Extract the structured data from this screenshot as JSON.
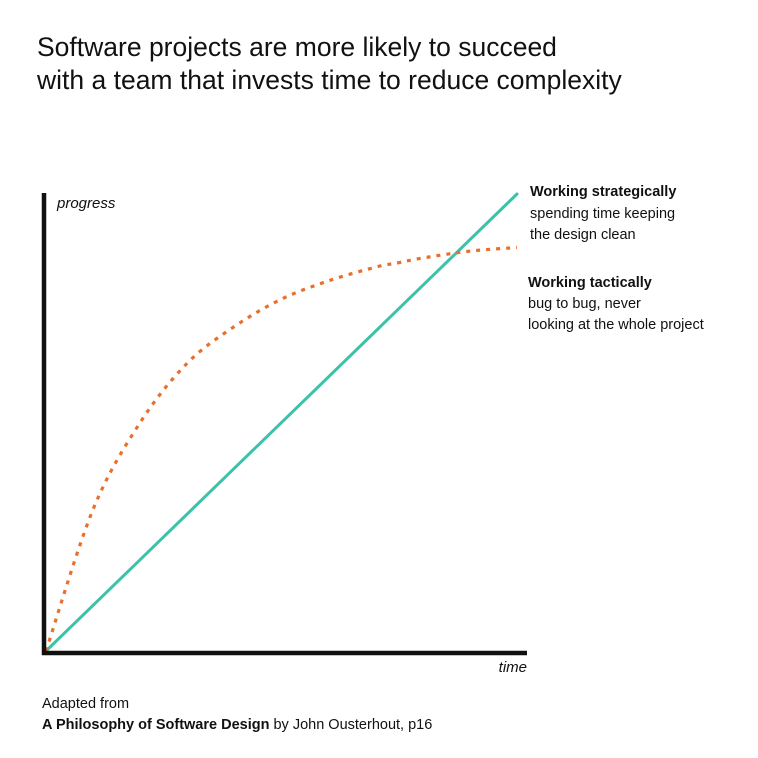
{
  "title": {
    "line1": "Software projects are more likely to succeed",
    "line2": "with a team that invests time to reduce complexity"
  },
  "colors": {
    "strategic": "#3cc2a8",
    "tactical": "#e8702a",
    "axis": "#111111",
    "text": "#111111"
  },
  "chart_data": {
    "type": "line",
    "xlabel": "time",
    "ylabel": "progress",
    "grid": false,
    "ticks": false,
    "xlim": [
      0,
      1
    ],
    "ylim": [
      0,
      1
    ],
    "series": [
      {
        "key": "strategic",
        "name": "Working strategically",
        "description": "spending time keeping the design clean",
        "description_lines": [
          "spending time keeping",
          "the design clean"
        ],
        "style": "solid",
        "color": "#3cc2a8",
        "shape": "linear",
        "x": [
          0,
          1
        ],
        "y": [
          0,
          1
        ]
      },
      {
        "key": "tactical",
        "name": "Working tactically",
        "description": "bug to bug, never looking at the whole project",
        "description_lines": [
          "bug to bug, never",
          "looking at the whole project"
        ],
        "style": "dotted",
        "color": "#e8702a",
        "shape": "concave saturating",
        "x": [
          0,
          0.1,
          0.2,
          0.3,
          0.4,
          0.5,
          0.6,
          0.7,
          0.75,
          0.8,
          0.9,
          1.0
        ],
        "y": [
          0,
          0.31,
          0.5,
          0.63,
          0.71,
          0.77,
          0.81,
          0.84,
          0.85,
          0.86,
          0.875,
          0.883
        ]
      }
    ]
  },
  "footer": {
    "line1": "Adapted from",
    "book": "A Philosophy of Software Design",
    "byline": " by John Ousterhout, p16"
  }
}
